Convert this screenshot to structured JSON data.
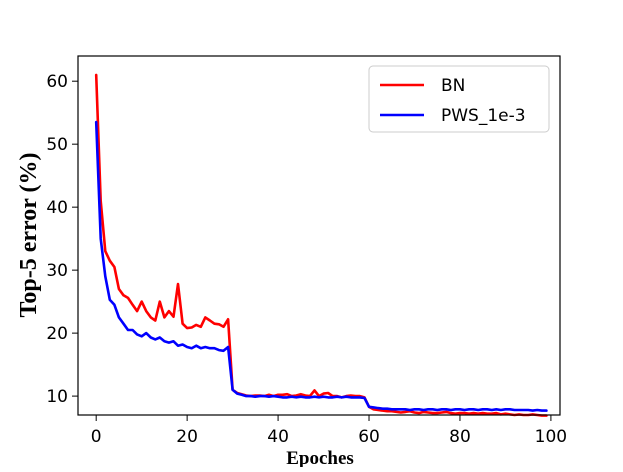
{
  "chart_data": {
    "type": "line",
    "title": "",
    "xlabel": "Epoches",
    "ylabel": "Top-5 error (%)",
    "xlim": [
      -4,
      102
    ],
    "ylim": [
      7,
      64
    ],
    "xticks": [
      0,
      20,
      40,
      60,
      80,
      100
    ],
    "yticks": [
      10,
      20,
      30,
      40,
      50,
      60
    ],
    "grid": false,
    "legend_position": "top-right",
    "series": [
      {
        "name": "BN",
        "color": "#ff0000",
        "x": [
          0,
          1,
          2,
          3,
          4,
          5,
          6,
          7,
          8,
          9,
          10,
          11,
          12,
          13,
          14,
          15,
          16,
          17,
          18,
          19,
          20,
          21,
          22,
          23,
          24,
          25,
          26,
          27,
          28,
          29,
          30,
          31,
          32,
          33,
          34,
          35,
          36,
          37,
          38,
          39,
          40,
          41,
          42,
          43,
          44,
          45,
          46,
          47,
          48,
          49,
          50,
          51,
          52,
          53,
          54,
          55,
          56,
          57,
          58,
          59,
          60,
          61,
          62,
          63,
          64,
          65,
          66,
          67,
          68,
          69,
          70,
          71,
          72,
          73,
          74,
          75,
          76,
          77,
          78,
          79,
          80,
          81,
          82,
          83,
          84,
          85,
          86,
          87,
          88,
          89,
          90,
          91,
          92,
          93,
          94,
          95,
          96,
          97,
          98,
          99
        ],
        "values": [
          61,
          41,
          33,
          31.5,
          30.5,
          27,
          26,
          25.6,
          24.5,
          23.5,
          25,
          23.5,
          22.5,
          22,
          25,
          22.5,
          23.5,
          22.6,
          27.8,
          21.5,
          20.8,
          20.9,
          21.3,
          21,
          22.5,
          22,
          21.5,
          21.4,
          21,
          22.2,
          11,
          10.5,
          10.3,
          10.1,
          10,
          10.1,
          10.1,
          10,
          10.2,
          10,
          10.2,
          10.2,
          10.3,
          10,
          10.1,
          10.3,
          10.1,
          10,
          10.9,
          10,
          10.4,
          10.5,
          10,
          10,
          9.8,
          10,
          10.1,
          10,
          10,
          9.8,
          8.3,
          7.9,
          7.8,
          7.7,
          7.6,
          7.6,
          7.5,
          7.4,
          7.5,
          7.6,
          7.4,
          7.3,
          7.5,
          7.4,
          7.3,
          7.3,
          7.4,
          7.5,
          7.3,
          7.2,
          7.3,
          7.3,
          7.2,
          7.3,
          7.2,
          7.3,
          7.2,
          7.2,
          7.3,
          7.1,
          7.2,
          7.1,
          7,
          7.1,
          7,
          7,
          7.1,
          7,
          6.9,
          6.9
        ]
      },
      {
        "name": "PWS_1e-3",
        "color": "#0000ff",
        "x": [
          0,
          1,
          2,
          3,
          4,
          5,
          6,
          7,
          8,
          9,
          10,
          11,
          12,
          13,
          14,
          15,
          16,
          17,
          18,
          19,
          20,
          21,
          22,
          23,
          24,
          25,
          26,
          27,
          28,
          29,
          30,
          31,
          32,
          33,
          34,
          35,
          36,
          37,
          38,
          39,
          40,
          41,
          42,
          43,
          44,
          45,
          46,
          47,
          48,
          49,
          50,
          51,
          52,
          53,
          54,
          55,
          56,
          57,
          58,
          59,
          60,
          61,
          62,
          63,
          64,
          65,
          66,
          67,
          68,
          69,
          70,
          71,
          72,
          73,
          74,
          75,
          76,
          77,
          78,
          79,
          80,
          81,
          82,
          83,
          84,
          85,
          86,
          87,
          88,
          89,
          90,
          91,
          92,
          93,
          94,
          95,
          96,
          97,
          98,
          99
        ],
        "values": [
          53.5,
          35,
          29,
          25.3,
          24.5,
          22.5,
          21.5,
          20.5,
          20.5,
          19.8,
          19.5,
          20,
          19.3,
          19,
          19.3,
          18.7,
          18.5,
          18.7,
          18,
          18.2,
          17.8,
          17.6,
          18,
          17.6,
          17.8,
          17.6,
          17.6,
          17.3,
          17.2,
          17.8,
          11,
          10.4,
          10.2,
          10,
          10,
          9.9,
          10,
          10,
          9.9,
          10,
          9.9,
          9.8,
          9.8,
          9.9,
          9.8,
          9.9,
          9.8,
          9.8,
          9.9,
          9.8,
          9.9,
          9.8,
          9.8,
          9.9,
          9.8,
          9.9,
          9.8,
          9.8,
          9.8,
          9.7,
          8.3,
          8.2,
          8.1,
          8,
          8,
          7.9,
          7.9,
          7.9,
          7.9,
          7.8,
          7.9,
          7.9,
          7.8,
          7.9,
          7.9,
          7.8,
          7.9,
          7.9,
          7.8,
          7.9,
          7.9,
          7.8,
          7.9,
          7.9,
          7.8,
          7.9,
          7.9,
          7.8,
          7.9,
          7.8,
          7.9,
          7.9,
          7.8,
          7.8,
          7.8,
          7.8,
          7.7,
          7.8,
          7.7,
          7.7
        ]
      }
    ]
  }
}
